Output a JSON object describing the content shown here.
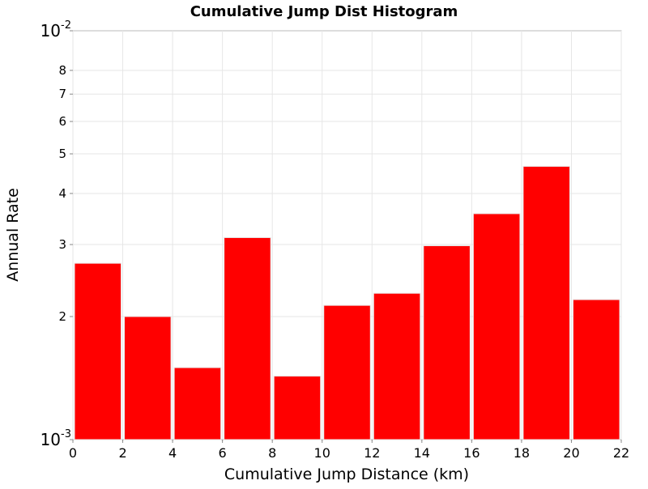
{
  "chart_data": {
    "type": "bar",
    "title": "Cumulative Jump Dist Histogram",
    "xlabel": "Cumulative Jump Distance (km)",
    "ylabel": "Annual Rate",
    "xlim": [
      0,
      22
    ],
    "ylim": [
      0.001,
      0.01
    ],
    "yscale": "log",
    "grid": true,
    "legend": "none",
    "bar_color": "#ff0000",
    "bin_width": 2,
    "bars": [
      {
        "x": 1,
        "value": 0.0027
      },
      {
        "x": 3,
        "value": 0.002
      },
      {
        "x": 5,
        "value": 0.0015
      },
      {
        "x": 7,
        "value": 0.00312
      },
      {
        "x": 9,
        "value": 0.00143
      },
      {
        "x": 11,
        "value": 0.00213
      },
      {
        "x": 13,
        "value": 0.00228
      },
      {
        "x": 15,
        "value": 0.00298
      },
      {
        "x": 17,
        "value": 0.00357
      },
      {
        "x": 19,
        "value": 0.00466
      },
      {
        "x": 21,
        "value": 0.0022
      }
    ],
    "x_ticks": [
      {
        "value": 0,
        "label": "0"
      },
      {
        "value": 2,
        "label": "2"
      },
      {
        "value": 4,
        "label": "4"
      },
      {
        "value": 6,
        "label": "6"
      },
      {
        "value": 8,
        "label": "8"
      },
      {
        "value": 10,
        "label": "10"
      },
      {
        "value": 12,
        "label": "12"
      },
      {
        "value": 14,
        "label": "14"
      },
      {
        "value": 16,
        "label": "16"
      },
      {
        "value": 18,
        "label": "18"
      },
      {
        "value": 20,
        "label": "20"
      },
      {
        "value": 22,
        "label": "22"
      }
    ],
    "y_decade_ticks": [
      {
        "value": 0.001,
        "base": "10",
        "exponent": "-3"
      },
      {
        "value": 0.01,
        "base": "10",
        "exponent": "-2"
      }
    ],
    "y_minor_ticks": [
      {
        "value": 0.002,
        "label": "2"
      },
      {
        "value": 0.003,
        "label": "3"
      },
      {
        "value": 0.004,
        "label": "4"
      },
      {
        "value": 0.005,
        "label": "5"
      },
      {
        "value": 0.006,
        "label": "6"
      },
      {
        "value": 0.007,
        "label": "7"
      },
      {
        "value": 0.008,
        "label": "8"
      }
    ]
  }
}
